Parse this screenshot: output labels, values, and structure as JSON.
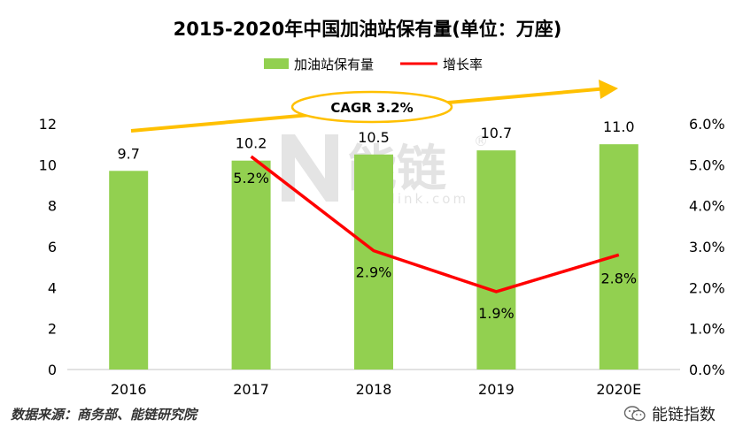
{
  "chart_data": {
    "type": "bar",
    "title": "2015-2020年中国加油站保有量(单位：万座)",
    "categories": [
      "2016",
      "2017",
      "2018",
      "2019",
      "2020E"
    ],
    "series": [
      {
        "name": "加油站保有量",
        "type": "bar",
        "axis": "left",
        "values": [
          9.7,
          10.2,
          10.5,
          10.7,
          11.0
        ],
        "labels": [
          "9.7",
          "10.2",
          "10.5",
          "10.7",
          "11.0"
        ]
      },
      {
        "name": "增长率",
        "type": "line",
        "axis": "right",
        "values": [
          null,
          5.2,
          2.9,
          1.9,
          2.8
        ],
        "labels": [
          "",
          "5.2%",
          "2.9%",
          "1.9%",
          "2.8%"
        ]
      }
    ],
    "y_left": {
      "ylim": [
        0,
        12
      ],
      "ticks": [
        "0",
        "2",
        "4",
        "6",
        "8",
        "10",
        "12"
      ]
    },
    "y_right": {
      "ylim": [
        0,
        6
      ],
      "ticks": [
        "0.0%",
        "1.0%",
        "2.0%",
        "3.0%",
        "4.0%",
        "5.0%",
        "6.0%"
      ]
    },
    "annotation": "CAGR 3.2%",
    "legend_position": "top-center",
    "grid": false,
    "colors": {
      "bar": "#92D050",
      "line": "#FF0000",
      "arrow": "#FFC000",
      "axis": "#D9D9D9"
    }
  },
  "watermark": {
    "text": "能链",
    "sub": "Newlink.com",
    "mark": "®"
  },
  "footer": {
    "source": "数据来源：商务部、能链研究院",
    "brand": "能链指数"
  },
  "icons": {
    "wechat": "wechat-icon"
  }
}
